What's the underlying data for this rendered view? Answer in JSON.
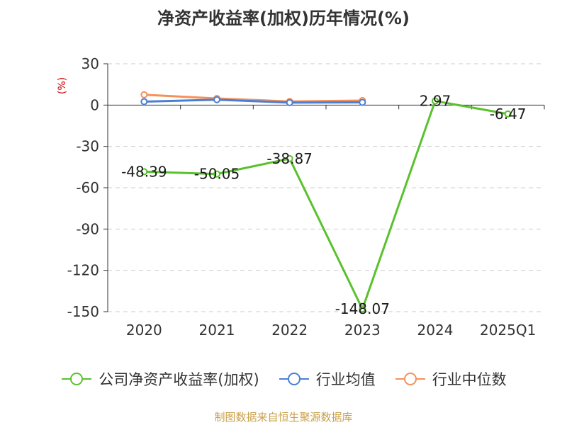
{
  "chart_data": {
    "type": "line",
    "title": "净资产收益率(加权)历年情况(%)",
    "ylabel": "(%)",
    "categories": [
      "2020",
      "2021",
      "2022",
      "2023",
      "2024",
      "2025Q1"
    ],
    "ylim": [
      -150,
      30
    ],
    "yticks": [
      30,
      0,
      -30,
      -60,
      -90,
      -120,
      -150
    ],
    "grid": true,
    "legend_position": "bottom",
    "series": [
      {
        "name": "公司净资产收益率(加权)",
        "color": "#5ac12e",
        "values": [
          -48.39,
          -50.05,
          -38.87,
          -148.07,
          2.97,
          -6.47
        ],
        "labels": [
          "-48.39",
          "-50.05",
          "-38.87",
          "-148.07",
          "2.97",
          "-6.47"
        ]
      },
      {
        "name": "行业均值",
        "color": "#4a7fd6",
        "values": [
          2.5,
          3.9,
          1.8,
          2.0,
          null,
          null
        ]
      },
      {
        "name": "行业中位数",
        "color": "#f4915a",
        "values": [
          7.5,
          4.8,
          2.6,
          3.3,
          null,
          null
        ]
      }
    ]
  },
  "source": "制图数据来自恒生聚源数据库"
}
